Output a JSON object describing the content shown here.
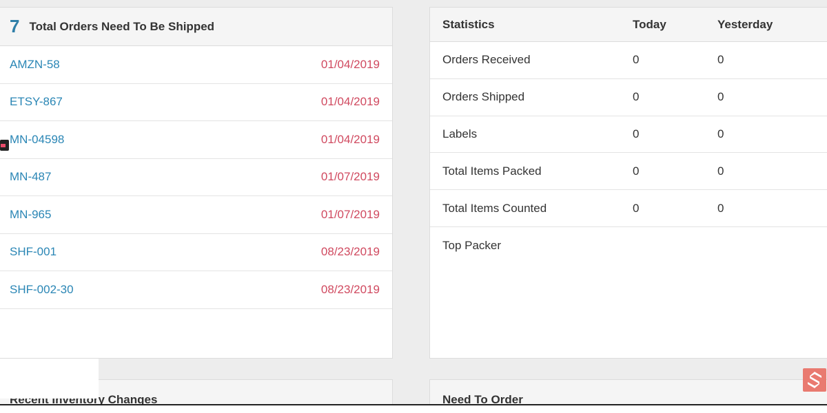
{
  "orders_panel": {
    "count": "7",
    "title": "Total Orders Need To Be Shipped",
    "orders": [
      {
        "id": "AMZN-58",
        "date": "01/04/2019"
      },
      {
        "id": "ETSY-867",
        "date": "01/04/2019"
      },
      {
        "id": "MN-04598",
        "date": "01/04/2019"
      },
      {
        "id": "MN-487",
        "date": "01/07/2019"
      },
      {
        "id": "MN-965",
        "date": "01/07/2019"
      },
      {
        "id": "SHF-001",
        "date": "08/23/2019"
      },
      {
        "id": "SHF-002-30",
        "date": "08/23/2019"
      }
    ]
  },
  "stats_panel": {
    "headers": {
      "label": "Statistics",
      "today": "Today",
      "yesterday": "Yesterday"
    },
    "rows": [
      {
        "label": "Orders Received",
        "today": "0",
        "yesterday": "0"
      },
      {
        "label": "Orders Shipped",
        "today": "0",
        "yesterday": "0"
      },
      {
        "label": "Labels",
        "today": "0",
        "yesterday": "0"
      },
      {
        "label": "Total Items Packed",
        "today": "0",
        "yesterday": "0"
      },
      {
        "label": "Total Items Counted",
        "today": "0",
        "yesterday": "0"
      },
      {
        "label": "Top Packer",
        "today": "",
        "yesterday": ""
      }
    ]
  },
  "inventory_panel": {
    "title": "Recent Inventory Changes"
  },
  "need_order_panel": {
    "title": "Need To Order"
  },
  "icons": {
    "brand": "brand-s-logo-icon",
    "marker": "recording-marker-icon"
  },
  "colors": {
    "link": "#2a86b5",
    "count": "#2f7fa8",
    "date": "#d0495f",
    "panel_header_bg": "#f5f5f5",
    "page_bg": "#ededed",
    "brand": "#e97a70"
  }
}
